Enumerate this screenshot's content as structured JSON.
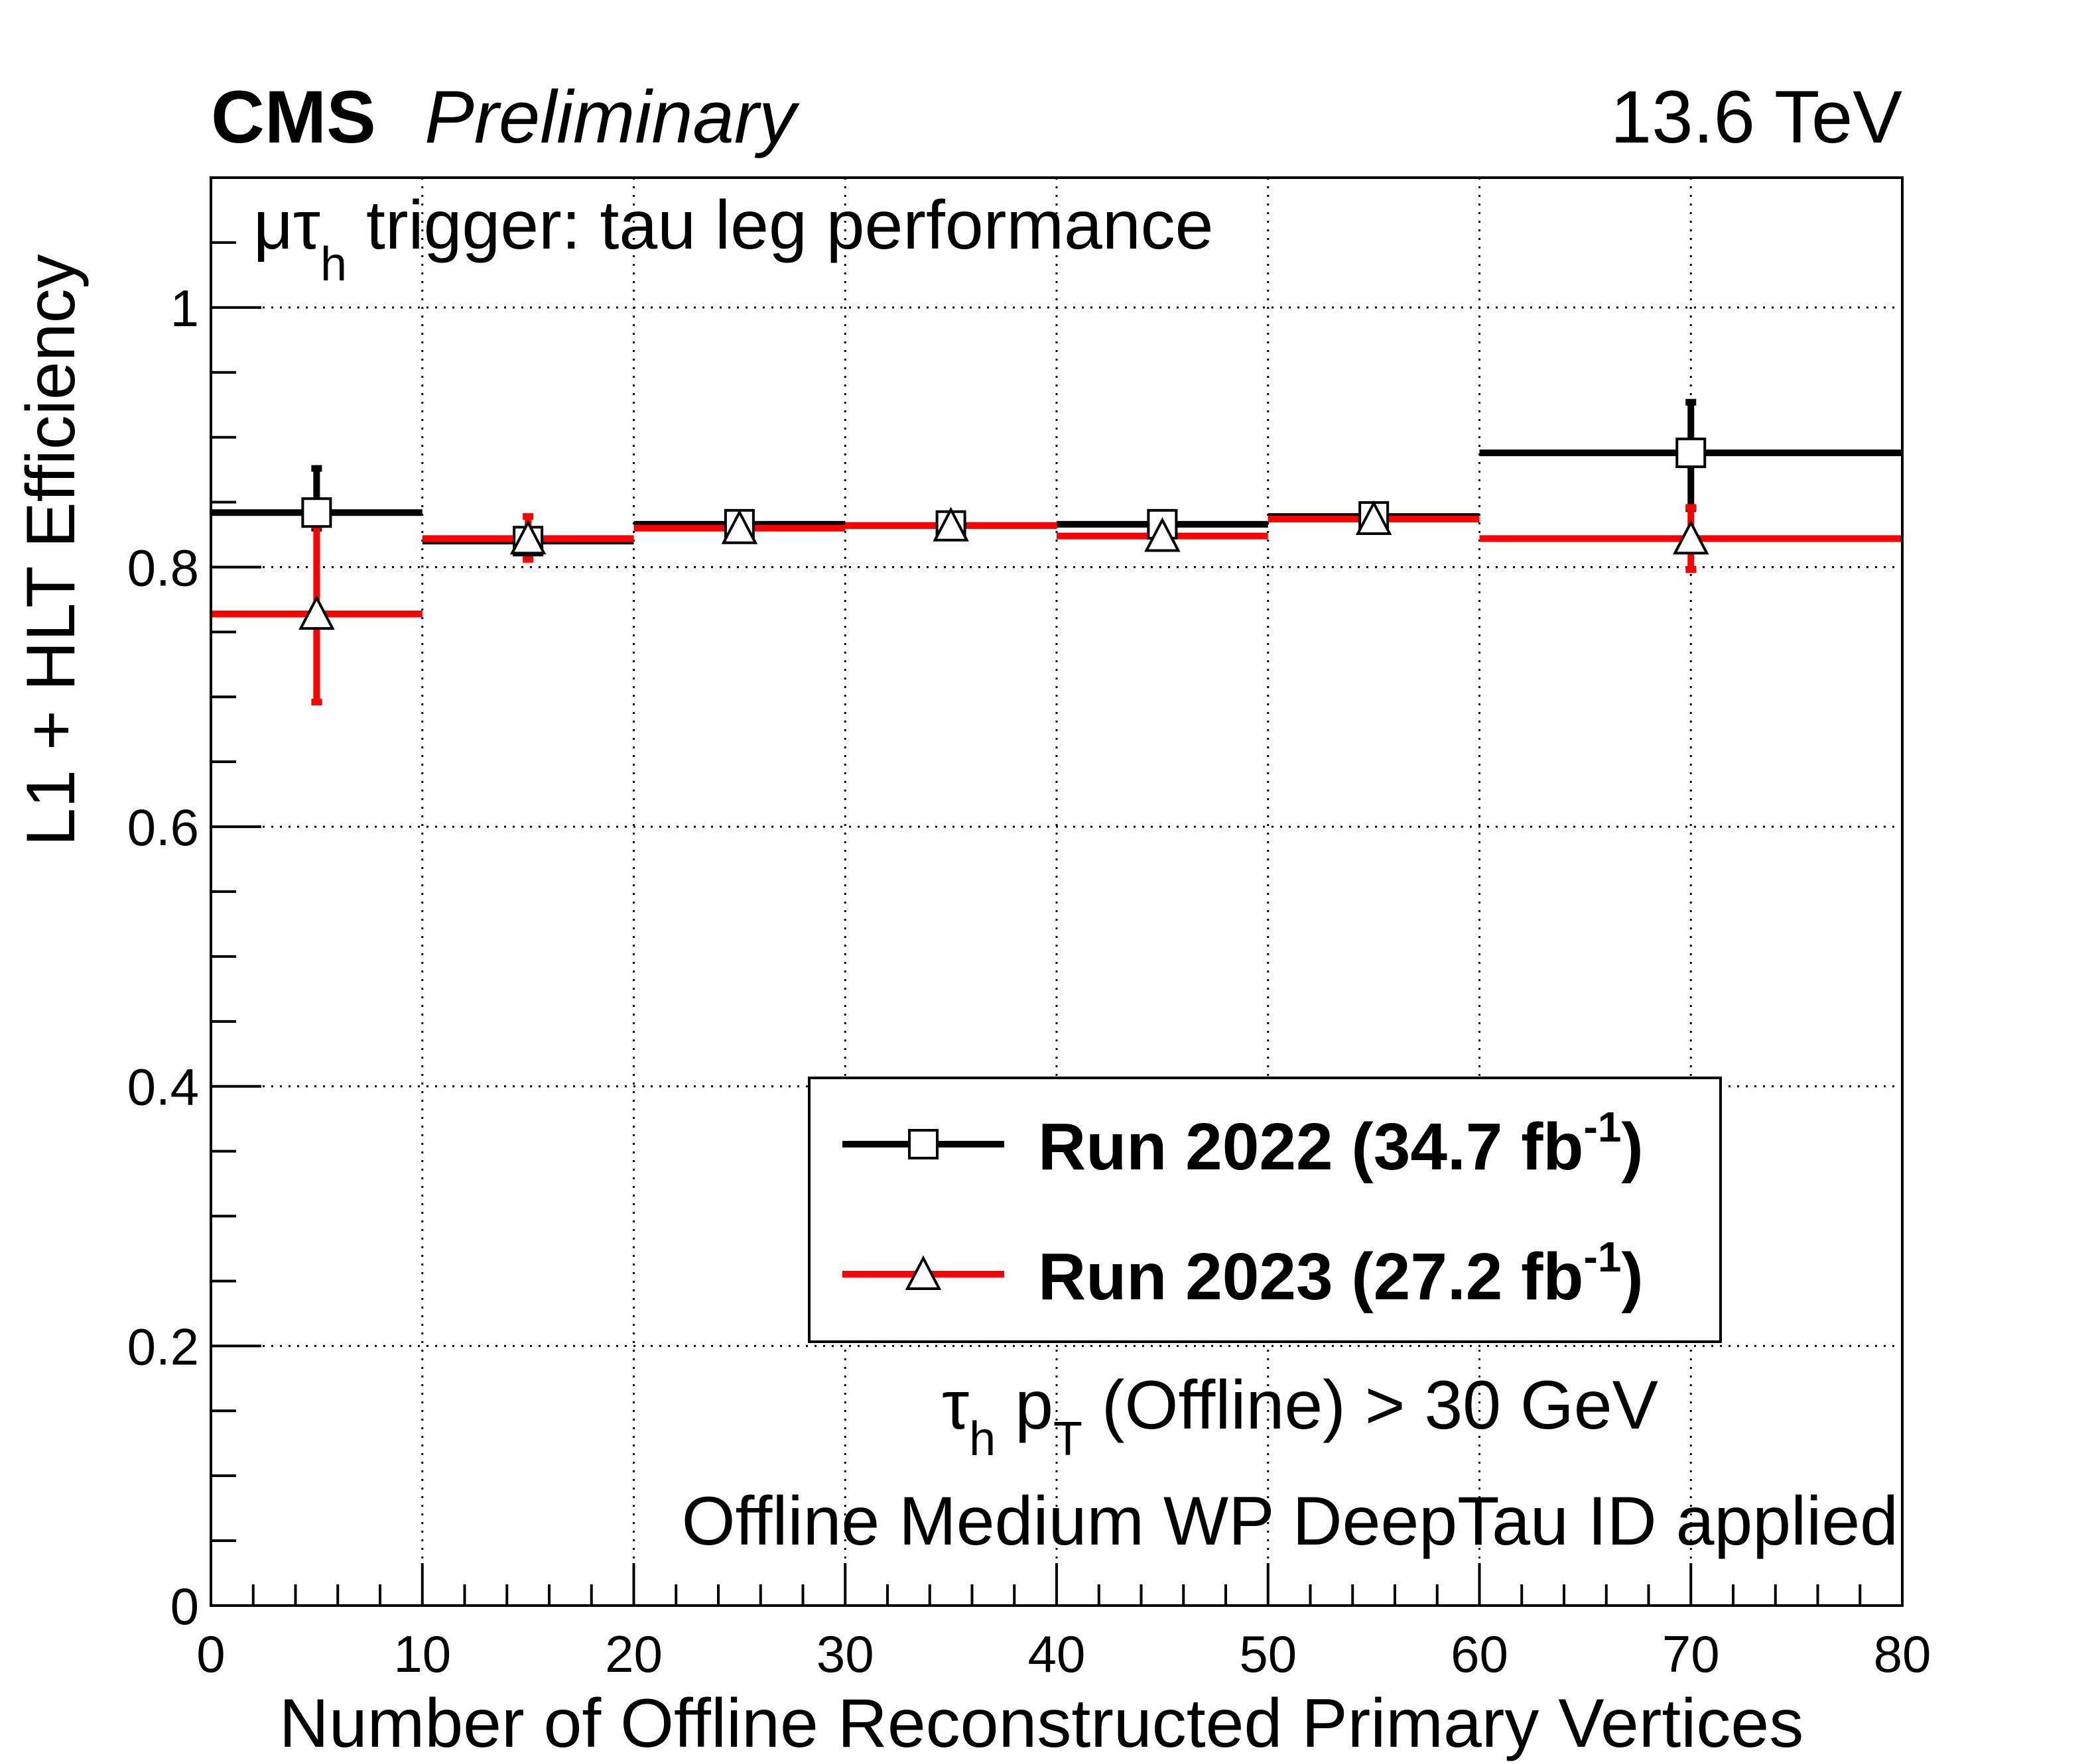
{
  "header": {
    "experiment": "CMS",
    "status": "Preliminary",
    "energy": "13.6 TeV"
  },
  "annotations": {
    "trigger_prefix": "μτ",
    "trigger_sub": "h",
    "trigger_suffix": " trigger: tau leg performance",
    "cut_tau": "τ",
    "cut_tau_sub": "h",
    "cut_p": " p",
    "cut_p_sub": "T",
    "cut_rest": " (Offline) > 30 GeV",
    "id_line": "Offline Medium WP DeepTau ID applied"
  },
  "legend": {
    "entries": [
      {
        "label": "Run 2022 (34.7 fb",
        "sup": "-1",
        "close": ")",
        "marker": "square"
      },
      {
        "label": "Run 2023 (27.2 fb",
        "sup": "-1",
        "close": ")",
        "marker": "triangle"
      }
    ]
  },
  "colors": {
    "run2022": "#000000",
    "run2023": "#ff0000",
    "marker_fill": "#ffffff"
  },
  "chart_data": {
    "type": "scatter",
    "title": "μτh trigger: tau leg performance",
    "xlabel": "Number of Offline Reconstructed Primary Vertices",
    "ylabel": "L1 + HLT Efficiency",
    "xlim": [
      0,
      80
    ],
    "ylim": [
      0,
      1.1
    ],
    "grid": true,
    "x_ticks": [
      0,
      10,
      20,
      30,
      40,
      50,
      60,
      70,
      80
    ],
    "x_tick_labels": [
      "0",
      "10",
      "20",
      "30",
      "40",
      "50",
      "60",
      "70",
      "80"
    ],
    "y_ticks": [
      0,
      0.2,
      0.4,
      0.6,
      0.8,
      1
    ],
    "y_tick_labels": [
      "0",
      "0.2",
      "0.4",
      "0.6",
      "0.8",
      "1"
    ],
    "legend_position": "center-right",
    "series": [
      {
        "name": "Run 2022 (34.7 fb-1)",
        "color": "#000000",
        "marker": "square",
        "points": [
          {
            "x": 5,
            "xlo": 0,
            "xhi": 10,
            "y": 0.842,
            "ylo": 0.83,
            "yhi": 0.876
          },
          {
            "x": 15,
            "xlo": 10,
            "xhi": 20,
            "y": 0.82,
            "ylo": 0.812,
            "yhi": 0.828
          },
          {
            "x": 25,
            "xlo": 20,
            "xhi": 30,
            "y": 0.833,
            "ylo": 0.829,
            "yhi": 0.837
          },
          {
            "x": 35,
            "xlo": 30,
            "xhi": 40,
            "y": 0.832,
            "ylo": 0.829,
            "yhi": 0.835
          },
          {
            "x": 45,
            "xlo": 40,
            "xhi": 50,
            "y": 0.833,
            "ylo": 0.829,
            "yhi": 0.837
          },
          {
            "x": 55,
            "xlo": 50,
            "xhi": 60,
            "y": 0.839,
            "ylo": 0.834,
            "yhi": 0.844
          },
          {
            "x": 70,
            "xlo": 60,
            "xhi": 80,
            "y": 0.888,
            "ylo": 0.845,
            "yhi": 0.927
          }
        ]
      },
      {
        "name": "Run 2023 (27.2 fb-1)",
        "color": "#ff0000",
        "marker": "triangle",
        "points": [
          {
            "x": 5,
            "xlo": 0,
            "xhi": 10,
            "y": 0.764,
            "ylo": 0.696,
            "yhi": 0.832
          },
          {
            "x": 15,
            "xlo": 10,
            "xhi": 20,
            "y": 0.822,
            "ylo": 0.806,
            "yhi": 0.839
          },
          {
            "x": 25,
            "xlo": 20,
            "xhi": 30,
            "y": 0.83,
            "ylo": 0.826,
            "yhi": 0.834
          },
          {
            "x": 35,
            "xlo": 30,
            "xhi": 40,
            "y": 0.832,
            "ylo": 0.829,
            "yhi": 0.835
          },
          {
            "x": 45,
            "xlo": 40,
            "xhi": 50,
            "y": 0.824,
            "ylo": 0.82,
            "yhi": 0.828
          },
          {
            "x": 55,
            "xlo": 50,
            "xhi": 60,
            "y": 0.837,
            "ylo": 0.833,
            "yhi": 0.841
          },
          {
            "x": 70,
            "xlo": 60,
            "xhi": 80,
            "y": 0.822,
            "ylo": 0.798,
            "yhi": 0.846
          }
        ]
      }
    ]
  }
}
